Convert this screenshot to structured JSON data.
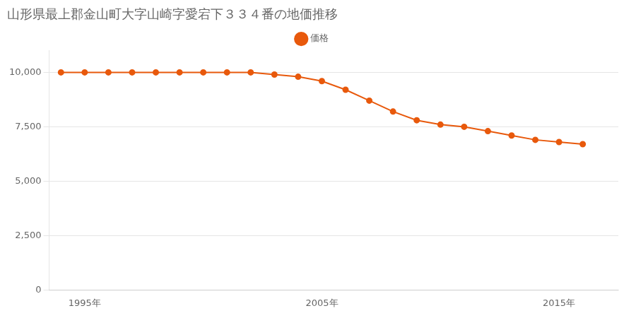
{
  "chart_data": {
    "type": "line",
    "title": "山形県最上郡金山町大字山崎字愛宕下３３４番の地価推移",
    "x": [
      1994,
      1995,
      1996,
      1997,
      1998,
      1999,
      2000,
      2001,
      2002,
      2003,
      2004,
      2005,
      2006,
      2007,
      2008,
      2009,
      2010,
      2011,
      2012,
      2013,
      2014,
      2015,
      2016
    ],
    "series": [
      {
        "name": "価格",
        "color": "#E8590C",
        "marker": "circle",
        "values": [
          10000,
          10000,
          10000,
          10000,
          10000,
          10000,
          10000,
          10000,
          10000,
          9900,
          9800,
          9600,
          9200,
          8700,
          8200,
          7800,
          7600,
          7500,
          7300,
          7100,
          6900,
          6800,
          6700
        ]
      }
    ],
    "xlim": [
      1993.5,
      2017.5
    ],
    "xticks": [
      {
        "value": 1995,
        "label": "1995年"
      },
      {
        "value": 2005,
        "label": "2005年"
      },
      {
        "value": 2015,
        "label": "2015年"
      }
    ],
    "ylim": [
      0,
      11000
    ],
    "yticks": [
      0,
      {
        "value": 2500,
        "label": "2,500"
      },
      {
        "value": 5000,
        "label": "5,000"
      },
      {
        "value": 7500,
        "label": "7,500"
      },
      {
        "value": 10000,
        "label": "10,000"
      }
    ],
    "grid": "y",
    "legend": "top"
  }
}
